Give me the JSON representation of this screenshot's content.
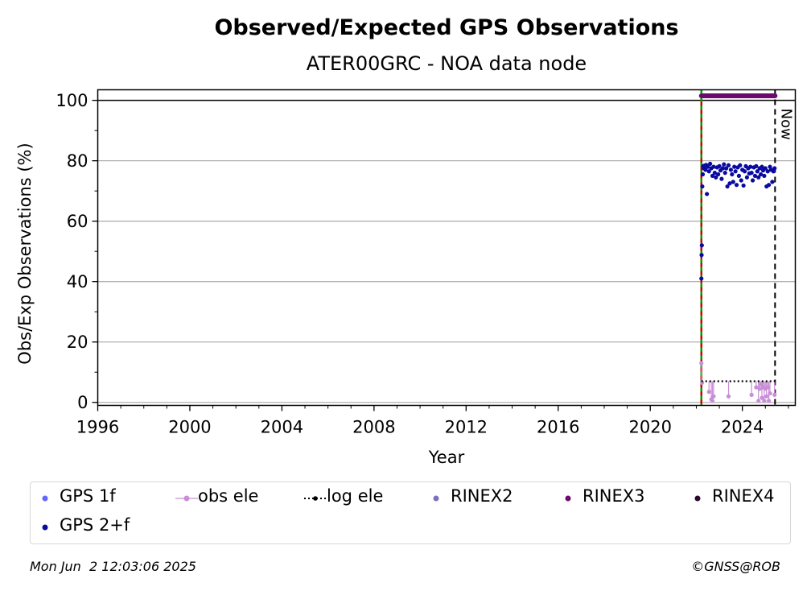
{
  "chart_data": {
    "type": "scatter",
    "title": "Observed/Expected GPS Observations",
    "subtitle": "ATER00GRC - NOA data node",
    "xlabel": "Year",
    "ylabel": "Obs/Exp Observations (%)",
    "xlim": [
      1996,
      2026.3
    ],
    "ylim": [
      -1,
      103.5
    ],
    "x_ticks": [
      1996,
      2000,
      2004,
      2008,
      2012,
      2016,
      2020,
      2024
    ],
    "y_ticks": [
      0,
      20,
      40,
      60,
      80,
      100
    ],
    "grid": "horizontal",
    "now_label": "Now",
    "now_x": 2025.42,
    "station_start_x": 2022.22,
    "series": [
      {
        "name": "GPS 1f",
        "color": "#6464ff",
        "points": []
      },
      {
        "name": "obs ele",
        "color": "#c88fd6",
        "points": [
          [
            2022.22,
            13
          ],
          [
            2022.25,
            6.5
          ],
          [
            2022.55,
            3.5
          ],
          [
            2022.65,
            1
          ],
          [
            2022.7,
            0.5
          ],
          [
            2022.75,
            2
          ],
          [
            2023.4,
            2
          ],
          [
            2024.4,
            2.5
          ],
          [
            2024.6,
            5
          ],
          [
            2024.7,
            0.5
          ],
          [
            2024.75,
            4.5
          ],
          [
            2024.8,
            6
          ],
          [
            2024.85,
            1.5
          ],
          [
            2024.9,
            5
          ],
          [
            2024.95,
            0.5
          ],
          [
            2025.0,
            4.5
          ],
          [
            2025.05,
            2
          ],
          [
            2025.1,
            5
          ],
          [
            2025.15,
            0.5
          ],
          [
            2025.2,
            3
          ],
          [
            2025.4,
            2.5
          ]
        ]
      },
      {
        "name": "log ele",
        "color": "#000000",
        "value": 7,
        "x_start": 2022.22,
        "x_end": 2025.42
      },
      {
        "name": "RINEX2",
        "color": "#7b6fbf",
        "points": []
      },
      {
        "name": "RINEX3",
        "color": "#6e0a6e",
        "value": 101.5,
        "x_start": 2022.22,
        "x_end": 2025.42
      },
      {
        "name": "RINEX4",
        "color": "#2a0a2a",
        "points": []
      },
      {
        "name": "GPS 2+f",
        "color": "#0a0aa0",
        "points": [
          [
            2022.22,
            41
          ],
          [
            2022.23,
            48.8
          ],
          [
            2022.24,
            52
          ],
          [
            2022.26,
            71.5
          ],
          [
            2022.28,
            75.5
          ],
          [
            2022.3,
            78.2
          ],
          [
            2022.33,
            77.5
          ],
          [
            2022.36,
            78.4
          ],
          [
            2022.4,
            77
          ],
          [
            2022.43,
            78.6
          ],
          [
            2022.46,
            69
          ],
          [
            2022.5,
            78
          ],
          [
            2022.55,
            76.5
          ],
          [
            2022.6,
            79
          ],
          [
            2022.65,
            77.5
          ],
          [
            2022.7,
            75
          ],
          [
            2022.75,
            78
          ],
          [
            2022.8,
            76
          ],
          [
            2022.85,
            74.5
          ],
          [
            2022.9,
            77.8
          ],
          [
            2022.95,
            75.5
          ],
          [
            2023.0,
            78.2
          ],
          [
            2023.05,
            76.8
          ],
          [
            2023.1,
            74
          ],
          [
            2023.15,
            77.5
          ],
          [
            2023.2,
            78.8
          ],
          [
            2023.25,
            76
          ],
          [
            2023.3,
            77.5
          ],
          [
            2023.35,
            71.5
          ],
          [
            2023.4,
            78.5
          ],
          [
            2023.45,
            72.5
          ],
          [
            2023.5,
            77
          ],
          [
            2023.55,
            75.5
          ],
          [
            2023.6,
            73
          ],
          [
            2023.65,
            78
          ],
          [
            2023.7,
            76.5
          ],
          [
            2023.75,
            72
          ],
          [
            2023.8,
            77.8
          ],
          [
            2023.85,
            75
          ],
          [
            2023.9,
            78.5
          ],
          [
            2023.95,
            73.5
          ],
          [
            2024.0,
            77
          ],
          [
            2024.05,
            71.8
          ],
          [
            2024.1,
            76.5
          ],
          [
            2024.15,
            78.2
          ],
          [
            2024.2,
            74.5
          ],
          [
            2024.25,
            77.5
          ],
          [
            2024.3,
            75.8
          ],
          [
            2024.35,
            78
          ],
          [
            2024.4,
            76
          ],
          [
            2024.45,
            73.5
          ],
          [
            2024.5,
            77.8
          ],
          [
            2024.55,
            75
          ],
          [
            2024.6,
            78.2
          ],
          [
            2024.65,
            76.5
          ],
          [
            2024.7,
            74.5
          ],
          [
            2024.75,
            77.5
          ],
          [
            2024.8,
            75.5
          ],
          [
            2024.85,
            78
          ],
          [
            2024.9,
            76.8
          ],
          [
            2024.95,
            75
          ],
          [
            2025.0,
            77.5
          ],
          [
            2025.05,
            71.5
          ],
          [
            2025.1,
            76.5
          ],
          [
            2025.15,
            72
          ],
          [
            2025.2,
            78
          ],
          [
            2025.25,
            77
          ],
          [
            2025.3,
            73
          ],
          [
            2025.35,
            76.5
          ],
          [
            2025.4,
            77.5
          ]
        ]
      }
    ]
  },
  "legend_items": [
    "GPS 1f",
    "obs ele",
    "log ele",
    "RINEX2",
    "RINEX3",
    "RINEX4",
    "GPS 2+f"
  ],
  "footer": {
    "timestamp": "Mon Jun  2 12:03:06 2025",
    "credit": "©GNSS@ROB"
  }
}
